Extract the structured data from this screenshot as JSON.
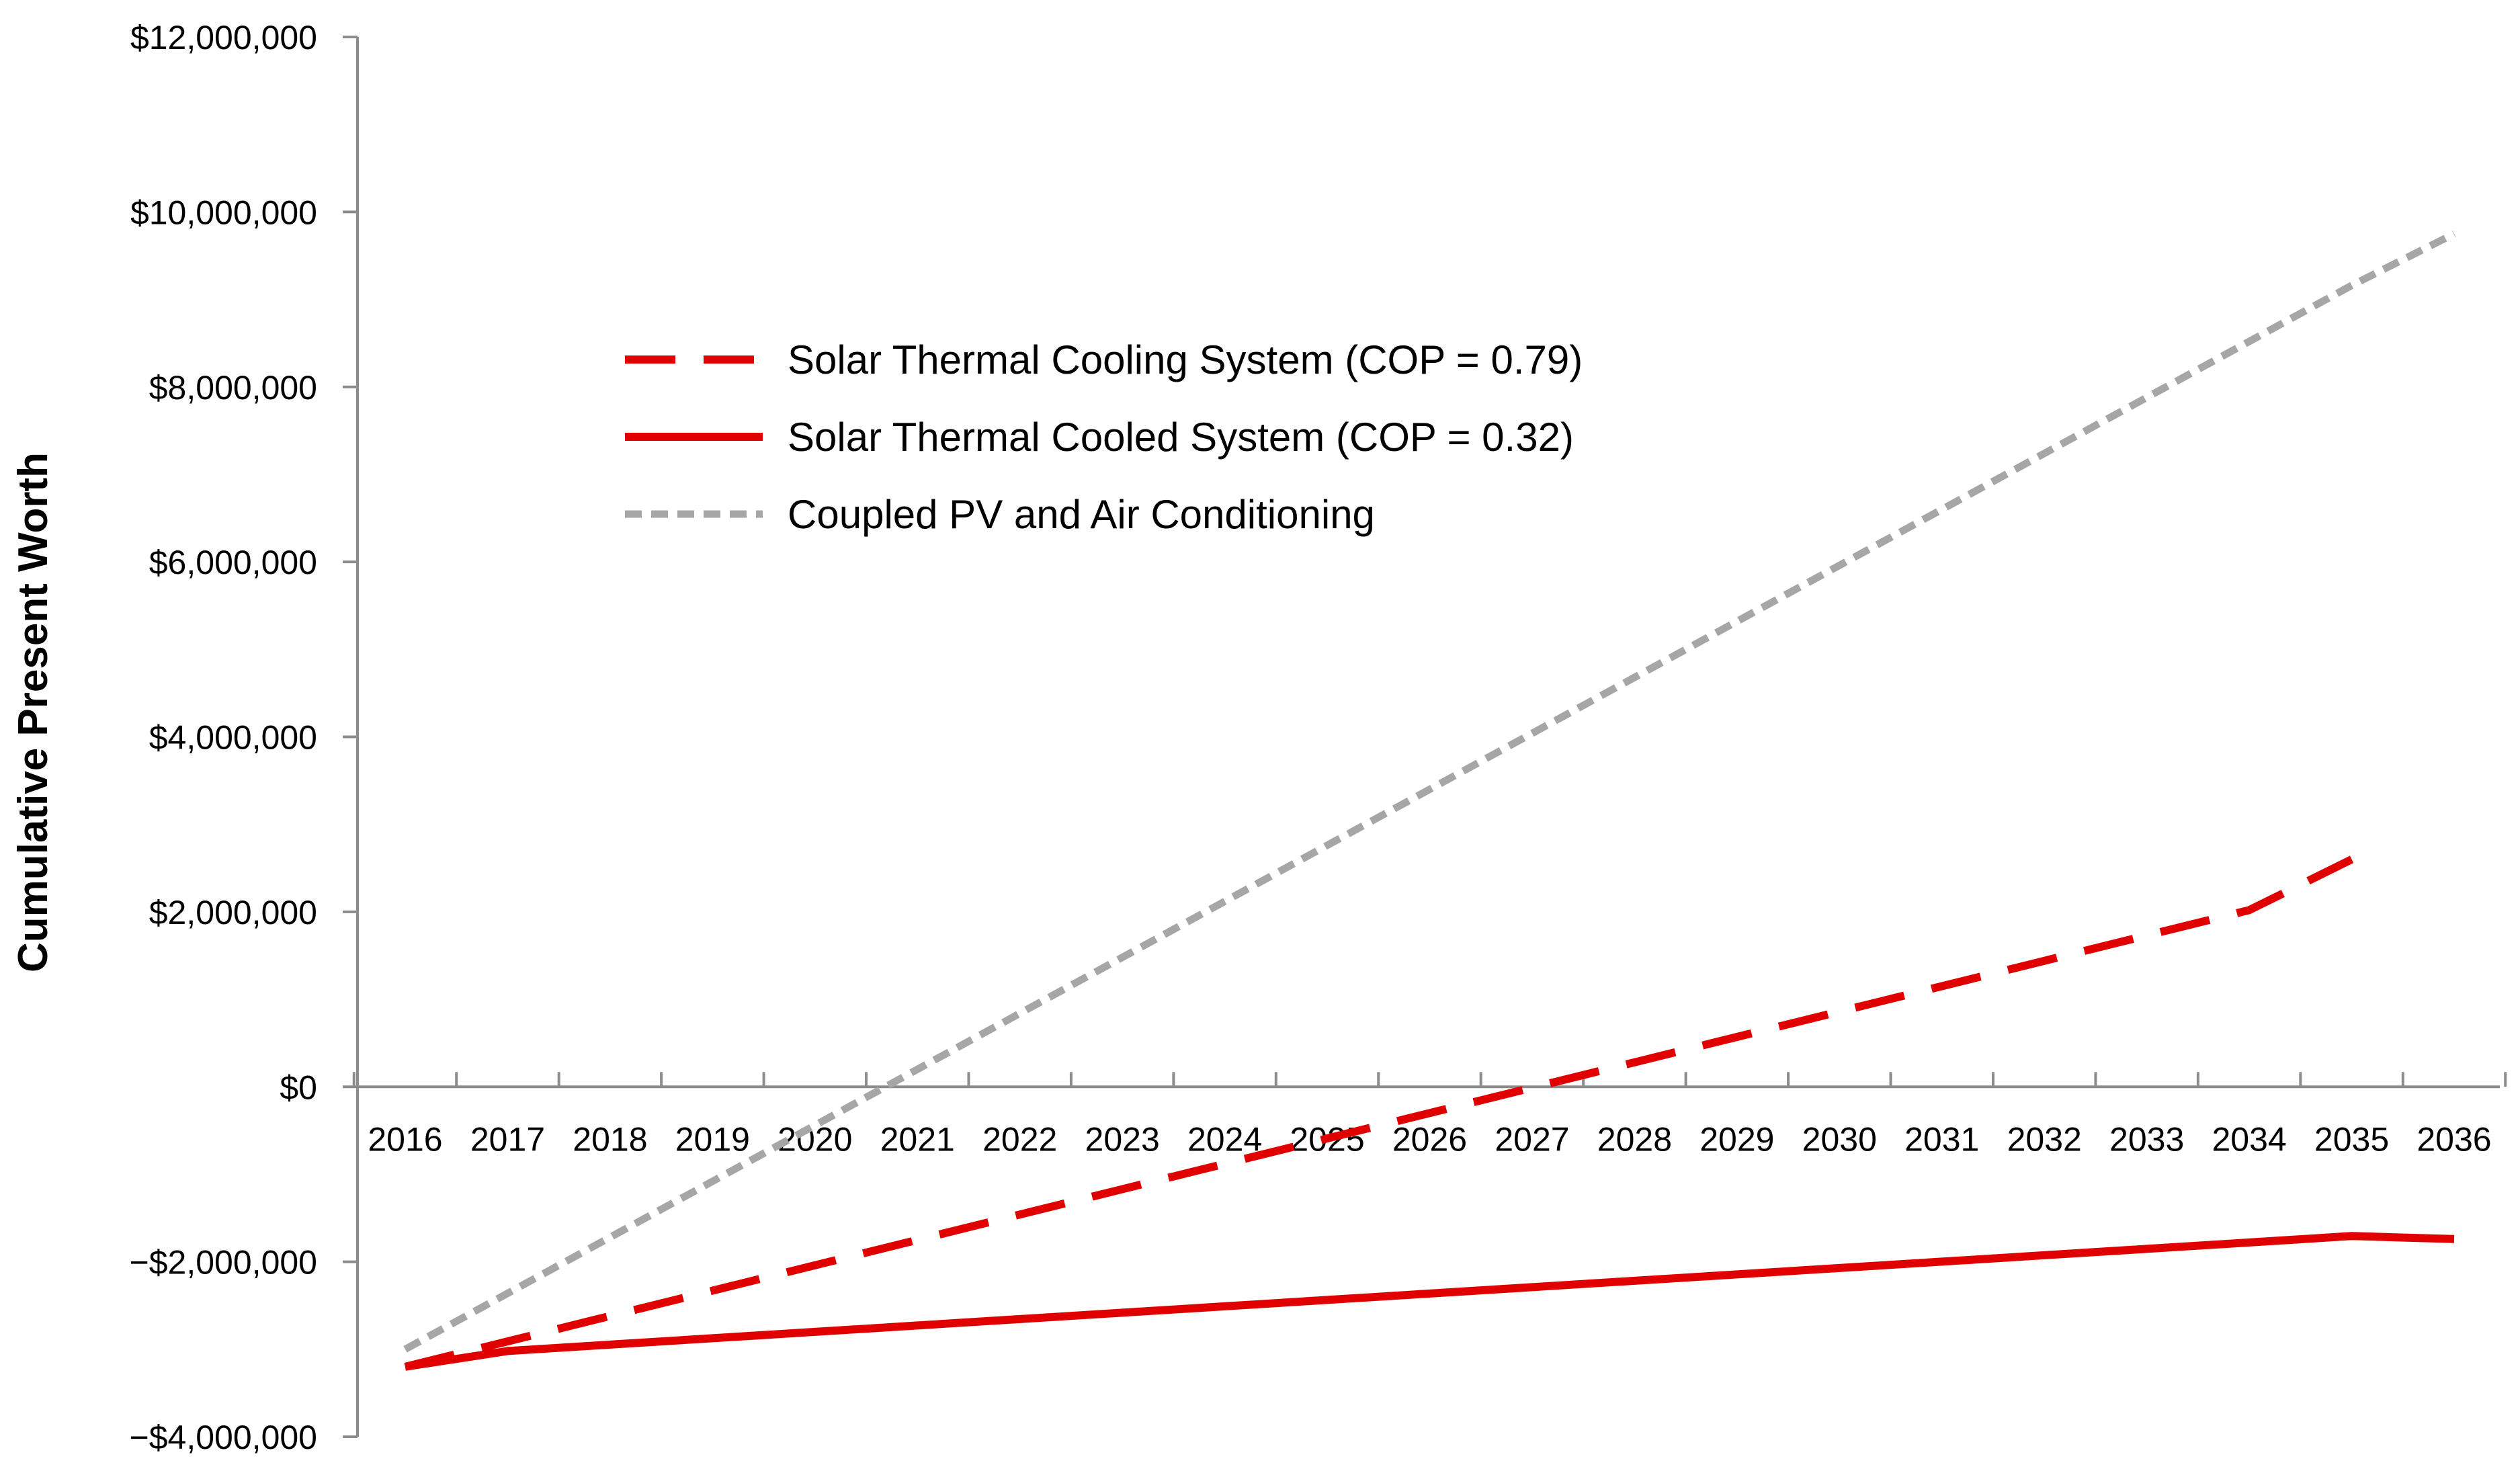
{
  "chart_data": {
    "type": "line",
    "title": "",
    "xlabel": "",
    "ylabel": "Cumulative Present Worth",
    "categories": [
      "2016",
      "2017",
      "2018",
      "2019",
      "2020",
      "2021",
      "2022",
      "2023",
      "2024",
      "2025",
      "2026",
      "2027",
      "2028",
      "2029",
      "2030",
      "2031",
      "2032",
      "2033",
      "2034",
      "2035",
      "2036"
    ],
    "ylim": [
      -4000000,
      12000000
    ],
    "y_ticks": [
      -4000000,
      -2000000,
      0,
      2000000,
      4000000,
      6000000,
      8000000,
      10000000,
      12000000
    ],
    "y_tick_labels": [
      "−$4,000,000",
      "−$2,000,000",
      "$0",
      "$2,000,000",
      "$4,000,000",
      "$6,000,000",
      "$8,000,000",
      "$10,000,000",
      "$12,000,000"
    ],
    "grid": false,
    "legend_position": "top-left",
    "series": [
      {
        "name": "Solar Thermal Cooling System (COP = 0.79)",
        "style": "long-dash",
        "color": "#e00000",
        "values": [
          -3200000,
          -2910000,
          -2620000,
          -2330000,
          -2040000,
          -1750000,
          -1460000,
          -1170000,
          -880000,
          -590000,
          -300000,
          -10000,
          280000,
          570000,
          860000,
          1150000,
          1440000,
          1730000,
          2020000,
          2600000,
          null
        ]
      },
      {
        "name": "Solar Thermal Cooled System (COP = 0.32)",
        "style": "solid",
        "color": "#e00000",
        "values": [
          -3200000,
          -3020000,
          -2947000,
          -2874000,
          -2801000,
          -2728000,
          -2655000,
          -2582000,
          -2509000,
          -2436000,
          -2363000,
          -2290000,
          -2217000,
          -2144000,
          -2071000,
          -1998000,
          -1925000,
          -1852000,
          -1779000,
          -1706000,
          -1740000
        ]
      },
      {
        "name": "Coupled PV and Air Conditioning",
        "style": "short-dash",
        "color": "#a6a6a6",
        "values": [
          -3000000,
          -2360000,
          -1720000,
          -1080000,
          -440000,
          200000,
          840000,
          1480000,
          2120000,
          2760000,
          3400000,
          4040000,
          4680000,
          5320000,
          5960000,
          6600000,
          7240000,
          7880000,
          8520000,
          9160000,
          9750000
        ]
      }
    ]
  }
}
